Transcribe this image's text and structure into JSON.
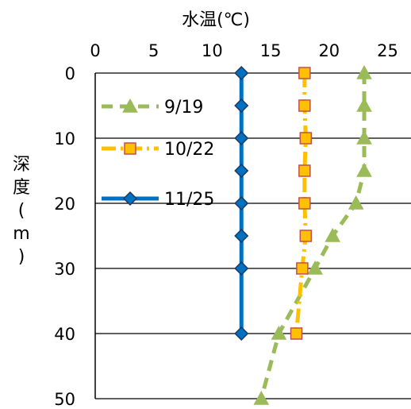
{
  "chart_data": {
    "type": "line",
    "title": "",
    "xlabel": "水温(℃)",
    "ylabel": [
      "深",
      "度",
      "(",
      "m",
      ")"
    ],
    "xlim": [
      0,
      27
    ],
    "ylim": [
      0,
      50
    ],
    "y_inverted": true,
    "x_axis_position": "top",
    "x_ticks": [
      0,
      5,
      10,
      15,
      20,
      25
    ],
    "y_ticks": [
      0,
      10,
      20,
      30,
      40,
      50
    ],
    "grid": "horizontal",
    "legend_position": "top-left",
    "series": [
      {
        "name": "9/19",
        "color": "#9bbb59",
        "line_style": "dashed",
        "marker": "triangle",
        "points": [
          [
            23,
            0
          ],
          [
            23,
            5
          ],
          [
            23,
            10
          ],
          [
            23,
            15
          ],
          [
            22.3,
            20
          ],
          [
            20.3,
            25
          ],
          [
            18.8,
            30
          ],
          [
            15.7,
            40
          ],
          [
            14.2,
            50
          ]
        ]
      },
      {
        "name": "10/22",
        "color": "#ffc000",
        "marker_fill": "#ffc000",
        "marker_stroke": "#c0504d",
        "line_style": "dash-dot",
        "marker": "square",
        "points": [
          [
            17.9,
            0
          ],
          [
            17.9,
            5
          ],
          [
            18,
            10
          ],
          [
            17.9,
            15
          ],
          [
            17.9,
            20
          ],
          [
            18,
            25
          ],
          [
            17.7,
            30
          ],
          [
            17.2,
            40
          ]
        ]
      },
      {
        "name": "11/25",
        "color": "#0070c0",
        "marker_fill": "#0070c0",
        "marker_stroke": "#1f3864",
        "line_style": "solid",
        "marker": "diamond",
        "points": [
          [
            12.5,
            0
          ],
          [
            12.5,
            5
          ],
          [
            12.5,
            10
          ],
          [
            12.5,
            15
          ],
          [
            12.5,
            20
          ],
          [
            12.5,
            25
          ],
          [
            12.5,
            30
          ],
          [
            12.5,
            40
          ]
        ]
      }
    ]
  }
}
